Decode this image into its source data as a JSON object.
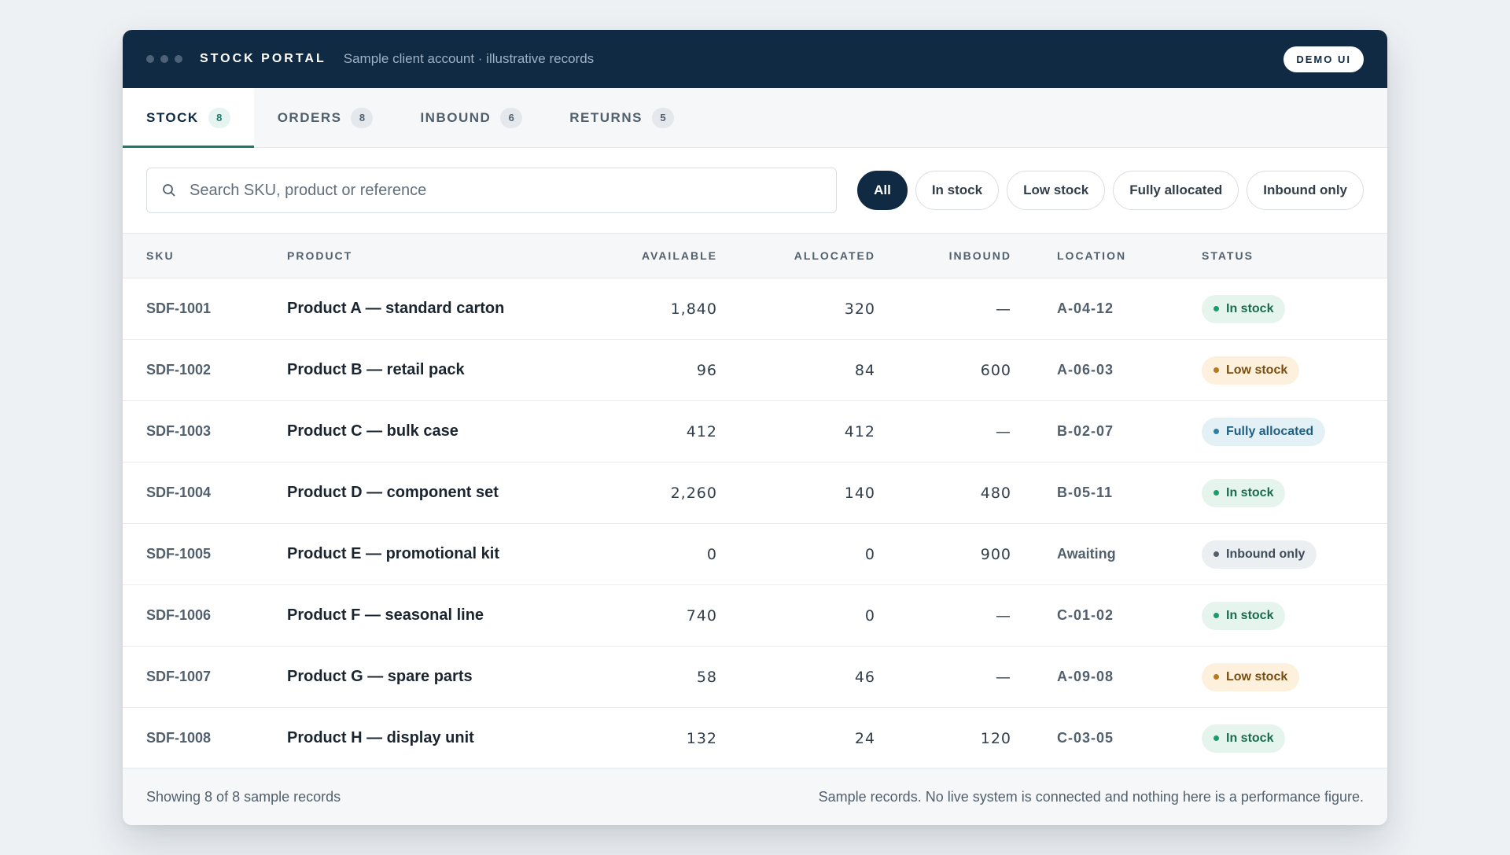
{
  "window": {
    "brand": "STOCK PORTAL",
    "subtitle": "Sample client account · illustrative records",
    "demo_pill": "DEMO UI"
  },
  "tabs": [
    {
      "label": "STOCK",
      "count": "8",
      "active": true
    },
    {
      "label": "ORDERS",
      "count": "8",
      "active": false
    },
    {
      "label": "INBOUND",
      "count": "6",
      "active": false
    },
    {
      "label": "RETURNS",
      "count": "5",
      "active": false
    }
  ],
  "search": {
    "placeholder": "Search SKU, product or reference",
    "value": ""
  },
  "filters": [
    {
      "label": "All",
      "active": true
    },
    {
      "label": "In stock",
      "active": false
    },
    {
      "label": "Low stock",
      "active": false
    },
    {
      "label": "Fully allocated",
      "active": false
    },
    {
      "label": "Inbound only",
      "active": false
    }
  ],
  "table": {
    "columns": {
      "sku": "SKU",
      "product": "PRODUCT",
      "available": "AVAILABLE",
      "allocated": "ALLOCATED",
      "inbound": "INBOUND",
      "location": "LOCATION",
      "status": "STATUS"
    },
    "rows": [
      {
        "sku": "SDF-1001",
        "product": "Product A — standard carton",
        "available": "1,840",
        "allocated": "320",
        "inbound": "—",
        "location": "A-04-12",
        "status": "In stock"
      },
      {
        "sku": "SDF-1002",
        "product": "Product B — retail pack",
        "available": "96",
        "allocated": "84",
        "inbound": "600",
        "location": "A-06-03",
        "status": "Low stock"
      },
      {
        "sku": "SDF-1003",
        "product": "Product C — bulk case",
        "available": "412",
        "allocated": "412",
        "inbound": "—",
        "location": "B-02-07",
        "status": "Fully allocated"
      },
      {
        "sku": "SDF-1004",
        "product": "Product D — component set",
        "available": "2,260",
        "allocated": "140",
        "inbound": "480",
        "location": "B-05-11",
        "status": "In stock"
      },
      {
        "sku": "SDF-1005",
        "product": "Product E — promotional kit",
        "available": "0",
        "allocated": "0",
        "inbound": "900",
        "location": "Awaiting",
        "status": "Inbound only"
      },
      {
        "sku": "SDF-1006",
        "product": "Product F — seasonal line",
        "available": "740",
        "allocated": "0",
        "inbound": "—",
        "location": "C-01-02",
        "status": "In stock"
      },
      {
        "sku": "SDF-1007",
        "product": "Product G — spare parts",
        "available": "58",
        "allocated": "46",
        "inbound": "—",
        "location": "A-09-08",
        "status": "Low stock"
      },
      {
        "sku": "SDF-1008",
        "product": "Product H — display unit",
        "available": "132",
        "allocated": "24",
        "inbound": "120",
        "location": "C-03-05",
        "status": "In stock"
      }
    ]
  },
  "status_styles": {
    "In stock": {
      "bg": "#e6f4ee",
      "fg": "#1b6b4f",
      "dot": "#1f9a6a"
    },
    "Low stock": {
      "bg": "#fdf0dc",
      "fg": "#7a4d10",
      "dot": "#b7791f"
    },
    "Fully allocated": {
      "bg": "#e3f0f6",
      "fg": "#1f5f80",
      "dot": "#2b7fa6"
    },
    "Inbound only": {
      "bg": "#eceff2",
      "fg": "#3e4c59",
      "dot": "#52606d"
    }
  },
  "footer": {
    "left": "Showing 8 of 8 sample records",
    "right": "Sample records. No live system is connected and nothing here is a performance figure."
  }
}
